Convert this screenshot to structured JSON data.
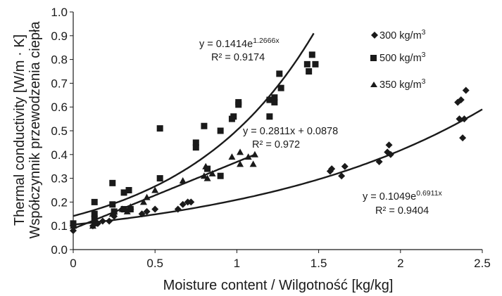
{
  "chart_data": {
    "type": "scatter",
    "xlabel": "Moisture content  / Wilgotność [kg/kg]",
    "ylabel_lines": [
      "Thermal conductivity [W/m · K]",
      "Współczynnik przewodzenia ciepła"
    ],
    "xlim": [
      0,
      2.5
    ],
    "ylim": [
      0,
      1.0
    ],
    "xticks": [
      "0",
      "0.5",
      "1",
      "1.5",
      "2",
      "2.5"
    ],
    "yticks": [
      "0.0",
      "0.1",
      "0.2",
      "0.3",
      "0.4",
      "0.5",
      "0.6",
      "0.7",
      "0.8",
      "0.9",
      "1.0"
    ],
    "xtick_values": [
      0,
      0.5,
      1,
      1.5,
      2,
      2.5
    ],
    "ytick_values": [
      0,
      0.1,
      0.2,
      0.3,
      0.4,
      0.5,
      0.6,
      0.7,
      0.8,
      0.9,
      1.0
    ],
    "grid": false,
    "legend_position": "top-right",
    "series": [
      {
        "name": "300 kg/m³",
        "legend_text": "300 kg/m",
        "legend_sup": "3",
        "marker": "diamond",
        "points": [
          [
            0.0,
            0.08
          ],
          [
            0.0,
            0.1
          ],
          [
            0.12,
            0.1
          ],
          [
            0.15,
            0.11
          ],
          [
            0.18,
            0.12
          ],
          [
            0.22,
            0.12
          ],
          [
            0.25,
            0.14
          ],
          [
            0.3,
            0.17
          ],
          [
            0.35,
            0.17
          ],
          [
            0.42,
            0.15
          ],
          [
            0.45,
            0.16
          ],
          [
            0.5,
            0.17
          ],
          [
            0.64,
            0.17
          ],
          [
            0.67,
            0.19
          ],
          [
            0.7,
            0.2
          ],
          [
            0.72,
            0.2
          ],
          [
            1.57,
            0.33
          ],
          [
            1.58,
            0.34
          ],
          [
            1.64,
            0.31
          ],
          [
            1.66,
            0.35
          ],
          [
            1.87,
            0.37
          ],
          [
            1.92,
            0.41
          ],
          [
            1.93,
            0.44
          ],
          [
            1.94,
            0.4
          ],
          [
            2.35,
            0.62
          ],
          [
            2.37,
            0.63
          ],
          [
            2.38,
            0.47
          ],
          [
            2.39,
            0.55
          ],
          [
            2.4,
            0.67
          ],
          [
            2.36,
            0.55
          ]
        ]
      },
      {
        "name": "500 kg/m³",
        "legend_text": "500 kg/m",
        "legend_sup": "3",
        "marker": "square",
        "points": [
          [
            0.0,
            0.11
          ],
          [
            0.13,
            0.2
          ],
          [
            0.13,
            0.15
          ],
          [
            0.13,
            0.13
          ],
          [
            0.24,
            0.28
          ],
          [
            0.24,
            0.19
          ],
          [
            0.25,
            0.16
          ],
          [
            0.31,
            0.24
          ],
          [
            0.31,
            0.17
          ],
          [
            0.34,
            0.25
          ],
          [
            0.35,
            0.17
          ],
          [
            0.53,
            0.51
          ],
          [
            0.53,
            0.3
          ],
          [
            0.75,
            0.43
          ],
          [
            0.75,
            0.45
          ],
          [
            0.8,
            0.52
          ],
          [
            0.82,
            0.34
          ],
          [
            0.97,
            0.55
          ],
          [
            0.98,
            0.56
          ],
          [
            1.01,
            0.61
          ],
          [
            1.01,
            0.62
          ],
          [
            0.9,
            0.5
          ],
          [
            0.9,
            0.31
          ],
          [
            1.2,
            0.63
          ],
          [
            1.2,
            0.56
          ],
          [
            1.23,
            0.64
          ],
          [
            1.23,
            0.62
          ],
          [
            1.26,
            0.74
          ],
          [
            1.27,
            0.68
          ],
          [
            1.43,
            0.78
          ],
          [
            1.44,
            0.75
          ],
          [
            1.46,
            0.82
          ],
          [
            1.48,
            0.78
          ]
        ]
      },
      {
        "name": "350 kg/m³",
        "legend_text": "350 kg/m",
        "legend_sup": "3",
        "marker": "triangle",
        "points": [
          [
            0.0,
            0.1
          ],
          [
            0.12,
            0.1
          ],
          [
            0.13,
            0.11
          ],
          [
            0.24,
            0.15
          ],
          [
            0.25,
            0.16
          ],
          [
            0.3,
            0.17
          ],
          [
            0.33,
            0.16
          ],
          [
            0.35,
            0.18
          ],
          [
            0.43,
            0.2
          ],
          [
            0.45,
            0.22
          ],
          [
            0.5,
            0.25
          ],
          [
            0.67,
            0.29
          ],
          [
            0.8,
            0.31
          ],
          [
            0.81,
            0.35
          ],
          [
            0.82,
            0.3
          ],
          [
            0.85,
            0.32
          ],
          [
            0.97,
            0.39
          ],
          [
            1.02,
            0.41
          ],
          [
            1.02,
            0.36
          ],
          [
            1.07,
            0.39
          ],
          [
            1.1,
            0.36
          ],
          [
            1.11,
            0.4
          ]
        ]
      }
    ],
    "trendlines": [
      {
        "series": "500 kg/m³",
        "kind": "exp",
        "a": 0.1414,
        "b": 1.2666,
        "x_range": [
          0,
          1.47
        ]
      },
      {
        "series": "350 kg/m³",
        "kind": "linear",
        "m": 0.2811,
        "c": 0.0878,
        "x_range": [
          0,
          1.1
        ]
      },
      {
        "series": "300 kg/m³",
        "kind": "exp",
        "a": 0.1049,
        "b": 0.6911,
        "x_range": [
          0,
          2.5
        ]
      }
    ],
    "annotations": [
      {
        "eq_base": "y = 0.1414e",
        "eq_exp": "1.2666x",
        "r2": "R² = 0.9174"
      },
      {
        "eq_base": "y = 0.2811x + 0.0878",
        "eq_exp": "",
        "r2": "R² = 0.972"
      },
      {
        "eq_base": "y = 0.1049e",
        "eq_exp": "0.6911x",
        "r2": "R² = 0.9404"
      }
    ]
  }
}
